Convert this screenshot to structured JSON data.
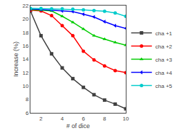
{
  "chart_data": {
    "type": "line",
    "x": [
      1,
      2,
      3,
      4,
      5,
      6,
      7,
      8,
      9,
      10
    ],
    "series": [
      {
        "name": "cha +1",
        "color": "#404040",
        "marker": "square",
        "values": [
          21.2,
          17.5,
          14.8,
          12.7,
          11.1,
          9.8,
          8.7,
          7.9,
          7.3,
          6.6
        ]
      },
      {
        "name": "cha +2",
        "color": "#ff0000",
        "marker": "circle",
        "values": [
          21.3,
          21.2,
          20.5,
          19.0,
          17.5,
          15.2,
          13.9,
          13.0,
          12.3,
          12.0
        ]
      },
      {
        "name": "cha +3",
        "color": "#00cc00",
        "marker": "triangle-up",
        "values": [
          21.4,
          21.3,
          21.2,
          20.4,
          19.5,
          18.5,
          17.5,
          17.0,
          16.5,
          16.1
        ]
      },
      {
        "name": "cha +4",
        "color": "#0000ff",
        "marker": "triangle-left",
        "values": [
          21.5,
          21.4,
          21.35,
          21.2,
          21.1,
          20.7,
          20.3,
          19.6,
          19.0,
          18.6
        ]
      },
      {
        "name": "cha +5",
        "color": "#00cccc",
        "marker": "circle",
        "values": [
          21.6,
          21.55,
          21.5,
          21.5,
          21.45,
          21.35,
          21.25,
          21.15,
          20.9,
          20.4
        ]
      }
    ],
    "xlabel": "# of dice",
    "ylabel": "Increase (%)",
    "xlim": [
      1,
      10
    ],
    "ylim": [
      6,
      22
    ],
    "xticks": [
      2,
      4,
      6,
      8,
      10
    ],
    "yticks": [
      6,
      8,
      10,
      12,
      14,
      16,
      18,
      20,
      22
    ],
    "grid": false,
    "legend": "right"
  }
}
